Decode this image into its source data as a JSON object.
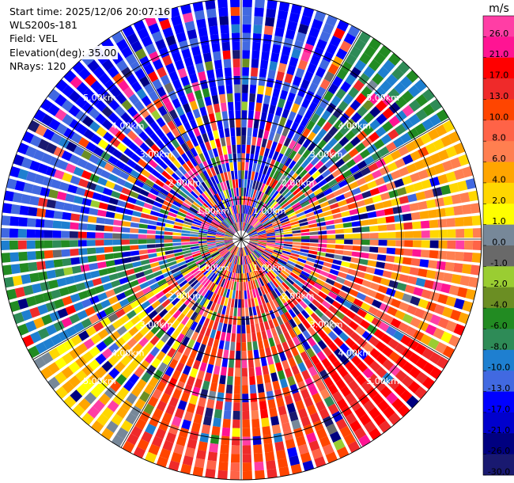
{
  "info": {
    "start_time": "Start time: 2025/12/06 20:07:16",
    "instrument": "WLS200s-181",
    "field": "Field: VEL",
    "elevation": "Elevation(deg): 35.00",
    "nrays": "NRays: 120"
  },
  "chart_data": {
    "type": "ppi-polar-heatmap",
    "field": "VEL",
    "units": "m/s",
    "elevation_deg": 35.0,
    "n_rays": 120,
    "max_range_km": 6.0,
    "range_rings_km": [
      1,
      2,
      3,
      4,
      5
    ],
    "ring_labels": [
      "1.00km",
      "2.00km",
      "3.00km",
      "4.00km",
      "5.00km"
    ],
    "azimuth_spokes_deg": [
      0,
      30,
      60,
      90,
      120,
      150,
      180,
      210,
      240,
      270,
      300,
      330
    ],
    "colorbar": {
      "title": "m/s",
      "vmin": -30.0,
      "vmax": 30.0,
      "tick_labels": [
        "26.0",
        "21.0",
        "17.0",
        "13.0",
        "10.0",
        "8.0",
        "6.0",
        "4.0",
        "2.0",
        "1.0",
        "0.0",
        "-1.0",
        "-2.0",
        "-4.0",
        "-6.0",
        "-8.0",
        "-10.0",
        "-13.0",
        "-17.0",
        "-21.0",
        "-26.0",
        "-30.0"
      ],
      "bins": [
        {
          "min": 26,
          "max": 30,
          "color": "#ff3ea5"
        },
        {
          "min": 21,
          "max": 26,
          "color": "#ff1493"
        },
        {
          "min": 17,
          "max": 21,
          "color": "#ff0000"
        },
        {
          "min": 13,
          "max": 17,
          "color": "#ef2a2a"
        },
        {
          "min": 10,
          "max": 13,
          "color": "#ff4500"
        },
        {
          "min": 8,
          "max": 10,
          "color": "#ff6347"
        },
        {
          "min": 6,
          "max": 8,
          "color": "#ff7f50"
        },
        {
          "min": 4,
          "max": 6,
          "color": "#ffa500"
        },
        {
          "min": 2,
          "max": 4,
          "color": "#ffd700"
        },
        {
          "min": 1,
          "max": 2,
          "color": "#ffff00"
        },
        {
          "min": 0,
          "max": 1,
          "color": "#778899"
        },
        {
          "min": -1,
          "max": 0,
          "color": "#696969"
        },
        {
          "min": -2,
          "max": -1,
          "color": "#9acd32"
        },
        {
          "min": -4,
          "max": -2,
          "color": "#6b8e23"
        },
        {
          "min": -6,
          "max": -4,
          "color": "#228b22"
        },
        {
          "min": -8,
          "max": -6,
          "color": "#2e8b57"
        },
        {
          "min": -10,
          "max": -8,
          "color": "#1e7fd0"
        },
        {
          "min": -13,
          "max": -10,
          "color": "#4169e1"
        },
        {
          "min": -17,
          "max": -13,
          "color": "#0000ff"
        },
        {
          "min": -21,
          "max": -17,
          "color": "#0000cd"
        },
        {
          "min": -26,
          "max": -21,
          "color": "#000080"
        },
        {
          "min": -30,
          "max": -26,
          "color": "#191970"
        }
      ]
    },
    "sector_tendency_ms": [
      {
        "azimuth_range_deg": [
          300,
          360
        ],
        "approx_velocity_ms": -15
      },
      {
        "azimuth_range_deg": [
          0,
          30
        ],
        "approx_velocity_ms": -14
      },
      {
        "azimuth_range_deg": [
          30,
          60
        ],
        "approx_velocity_ms": -7
      },
      {
        "azimuth_range_deg": [
          60,
          90
        ],
        "approx_velocity_ms": 5
      },
      {
        "azimuth_range_deg": [
          90,
          120
        ],
        "approx_velocity_ms": 8
      },
      {
        "azimuth_range_deg": [
          120,
          150
        ],
        "approx_velocity_ms": 18
      },
      {
        "azimuth_range_deg": [
          150,
          210
        ],
        "approx_velocity_ms": 12
      },
      {
        "azimuth_range_deg": [
          210,
          240
        ],
        "approx_velocity_ms": 3
      },
      {
        "azimuth_range_deg": [
          240,
          270
        ],
        "approx_velocity_ms": -7
      },
      {
        "azimuth_range_deg": [
          270,
          300
        ],
        "approx_velocity_ms": -12
      }
    ]
  }
}
